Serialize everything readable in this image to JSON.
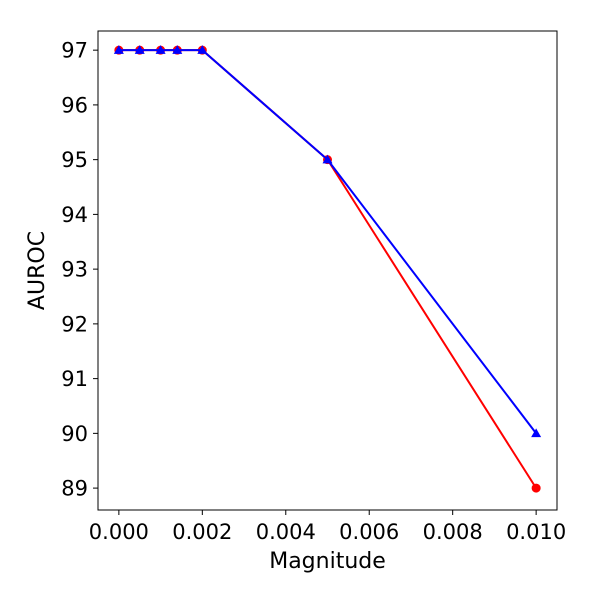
{
  "chart_data": {
    "type": "line",
    "title": "",
    "xlabel": "Magnitude",
    "ylabel": "AUROC",
    "xlim": [
      -0.0005,
      0.0105
    ],
    "ylim": [
      88.6,
      97.35
    ],
    "xticks": [
      0.0,
      0.002,
      0.004,
      0.006,
      0.008,
      0.01
    ],
    "xtick_labels": [
      "0.000",
      "0.002",
      "0.004",
      "0.006",
      "0.008",
      "0.010"
    ],
    "yticks": [
      89,
      90,
      91,
      92,
      93,
      94,
      95,
      96,
      97
    ],
    "ytick_labels": [
      "89",
      "90",
      "91",
      "92",
      "93",
      "94",
      "95",
      "96",
      "97"
    ],
    "grid": false,
    "legend": "none",
    "series": [
      {
        "color": "#ff0000",
        "marker": "circle",
        "x": [
          0.0,
          0.0005,
          0.001,
          0.0014,
          0.002,
          0.005,
          0.01
        ],
        "y": [
          97,
          97,
          97,
          97,
          97,
          95,
          89
        ]
      },
      {
        "color": "#0000ff",
        "marker": "triangle",
        "x": [
          0.0,
          0.0005,
          0.001,
          0.0014,
          0.002,
          0.005,
          0.01
        ],
        "y": [
          97,
          97,
          97,
          97,
          97,
          95,
          90
        ]
      }
    ]
  }
}
